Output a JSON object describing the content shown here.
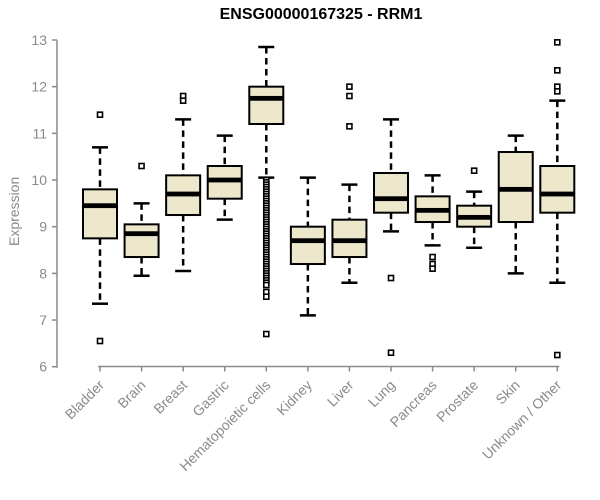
{
  "chart_data": {
    "type": "boxplot",
    "title": "ENSG00000167325 - RRM1",
    "ylabel": "Expression",
    "xlabel": "",
    "ylim": [
      6,
      13
    ],
    "yticks": [
      6,
      7,
      8,
      9,
      10,
      11,
      12,
      13
    ],
    "grid": "off",
    "legend": "none",
    "categories": [
      "Bladder",
      "Brain",
      "Breast",
      "Gastric",
      "Hematopoietic cells",
      "Kidney",
      "Liver",
      "Lung",
      "Pancreas",
      "Prostate",
      "Skin",
      "Unknown / Other"
    ],
    "series": [
      {
        "label": "Bladder",
        "low": 7.35,
        "q1": 8.75,
        "median": 9.45,
        "q3": 9.8,
        "high": 10.7,
        "outliers": [
          11.4,
          6.55
        ]
      },
      {
        "label": "Brain",
        "low": 7.95,
        "q1": 8.35,
        "median": 8.85,
        "q3": 9.05,
        "high": 9.5,
        "outliers": [
          10.3
        ]
      },
      {
        "label": "Breast",
        "low": 8.05,
        "q1": 9.25,
        "median": 9.7,
        "q3": 10.1,
        "high": 11.3,
        "outliers": [
          11.8,
          11.7
        ]
      },
      {
        "label": "Gastric",
        "low": 9.15,
        "q1": 9.6,
        "median": 10.0,
        "q3": 10.3,
        "high": 10.95,
        "outliers": []
      },
      {
        "label": "Hematopoietic cells",
        "low": 10.05,
        "q1": 11.2,
        "median": 11.75,
        "q3": 12.0,
        "high": 12.85,
        "outliers": [
          10.0,
          9.95,
          9.9,
          9.85,
          9.8,
          9.75,
          9.7,
          9.65,
          9.6,
          9.55,
          9.5,
          9.45,
          9.4,
          9.35,
          9.3,
          9.25,
          9.2,
          9.15,
          9.1,
          9.05,
          9.0,
          8.95,
          8.9,
          8.85,
          8.8,
          8.75,
          8.7,
          8.65,
          8.6,
          8.55,
          8.5,
          8.45,
          8.4,
          8.35,
          8.3,
          8.25,
          8.2,
          8.15,
          8.1,
          8.05,
          8.0,
          7.95,
          7.9,
          7.85,
          7.8,
          7.75,
          7.6,
          7.5,
          6.7
        ]
      },
      {
        "label": "Kidney",
        "low": 7.1,
        "q1": 8.2,
        "median": 8.7,
        "q3": 9.0,
        "high": 10.05,
        "outliers": []
      },
      {
        "label": "Liver",
        "low": 7.8,
        "q1": 8.35,
        "median": 8.7,
        "q3": 9.15,
        "high": 9.9,
        "outliers": [
          12.0,
          11.8,
          11.15
        ]
      },
      {
        "label": "Lung",
        "low": 8.9,
        "q1": 9.3,
        "median": 9.6,
        "q3": 10.15,
        "high": 11.3,
        "outliers": [
          7.9,
          6.3
        ]
      },
      {
        "label": "Pancreas",
        "low": 8.6,
        "q1": 9.1,
        "median": 9.35,
        "q3": 9.65,
        "high": 10.1,
        "outliers": [
          8.35,
          8.2,
          8.1
        ]
      },
      {
        "label": "Prostate",
        "low": 8.55,
        "q1": 9.0,
        "median": 9.2,
        "q3": 9.45,
        "high": 9.75,
        "outliers": [
          10.2
        ]
      },
      {
        "label": "Skin",
        "low": 8.0,
        "q1": 9.1,
        "median": 9.8,
        "q3": 10.6,
        "high": 10.95,
        "outliers": []
      },
      {
        "label": "Unknown / Other",
        "low": 7.8,
        "q1": 9.3,
        "median": 9.7,
        "q3": 10.3,
        "high": 11.7,
        "outliers": [
          12.95,
          12.35,
          12.0,
          11.9,
          6.25
        ]
      }
    ]
  },
  "colors": {
    "box_fill": "#EDE8CC",
    "box_stroke": "#000000",
    "median": "#000000",
    "axis": "#8a8a8a",
    "tick_label": "#8a8a8a",
    "title": "#000000",
    "background": "#ffffff"
  }
}
